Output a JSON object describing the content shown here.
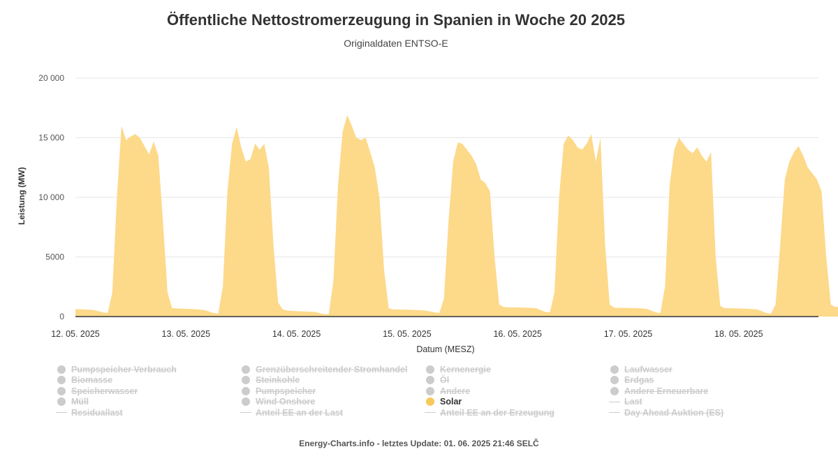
{
  "title": "Öffentliche Nettostromerzeugung in Spanien in Woche 20 2025",
  "subtitle": "Originaldaten ENTSO-E",
  "footer": "Energy-Charts.info - letztes Update: 01. 06. 2025 21:46 SELČ",
  "colors": {
    "solar": "#fdd98a",
    "hidden": "#cccccc",
    "grid": "#e6e6e6",
    "axis": "#333333"
  },
  "chart_data": {
    "type": "area",
    "title": "Öffentliche Nettostromerzeugung in Spanien in Woche 20 2025",
    "subtitle": "Originaldaten ENTSO-E",
    "xlabel": "Datum (MESZ)",
    "ylabel": "Leistung (MW)",
    "ylim": [
      0,
      20000
    ],
    "xlim": [
      "2025-05-12 00:00",
      "2025-05-18 23:00"
    ],
    "yticks": [
      0,
      5000,
      10000,
      15000,
      20000
    ],
    "ytick_labels": [
      "0",
      "5000",
      "10 000",
      "15 000",
      "20 000"
    ],
    "xtick_labels": [
      "12. 05. 2025",
      "13. 05. 2025",
      "14. 05. 2025",
      "15. 05. 2025",
      "16. 05. 2025",
      "17. 05. 2025",
      "18. 05. 2025"
    ],
    "grid": true,
    "legend_position": "bottom",
    "series": [
      {
        "name": "Solar",
        "color": "#fdd98a",
        "points": [
          [
            "2025-05-12 00:00",
            620
          ],
          [
            "2025-05-12 02:00",
            600
          ],
          [
            "2025-05-12 04:00",
            550
          ],
          [
            "2025-05-12 06:00",
            350
          ],
          [
            "2025-05-12 07:00",
            300
          ],
          [
            "2025-05-12 08:00",
            2000
          ],
          [
            "2025-05-12 09:00",
            10000
          ],
          [
            "2025-05-12 10:00",
            16000
          ],
          [
            "2025-05-12 11:00",
            14800
          ],
          [
            "2025-05-12 12:00",
            15100
          ],
          [
            "2025-05-12 13:00",
            15300
          ],
          [
            "2025-05-12 14:00",
            15000
          ],
          [
            "2025-05-12 15:00",
            14300
          ],
          [
            "2025-05-12 16:00",
            13600
          ],
          [
            "2025-05-12 17:00",
            14700
          ],
          [
            "2025-05-12 18:00",
            13500
          ],
          [
            "2025-05-12 19:00",
            8000
          ],
          [
            "2025-05-12 20:00",
            2000
          ],
          [
            "2025-05-12 21:00",
            700
          ],
          [
            "2025-05-12 22:00",
            680
          ],
          [
            "2025-05-13 00:00",
            650
          ],
          [
            "2025-05-13 02:00",
            620
          ],
          [
            "2025-05-13 04:00",
            550
          ],
          [
            "2025-05-13 06:00",
            300
          ],
          [
            "2025-05-13 07:00",
            250
          ],
          [
            "2025-05-13 08:00",
            2500
          ],
          [
            "2025-05-13 09:00",
            10500
          ],
          [
            "2025-05-13 10:00",
            14500
          ],
          [
            "2025-05-13 11:00",
            15900
          ],
          [
            "2025-05-13 12:00",
            14200
          ],
          [
            "2025-05-13 13:00",
            13000
          ],
          [
            "2025-05-13 14:00",
            13200
          ],
          [
            "2025-05-13 15:00",
            14500
          ],
          [
            "2025-05-13 16:00",
            14000
          ],
          [
            "2025-05-13 17:00",
            14500
          ],
          [
            "2025-05-13 18:00",
            12500
          ],
          [
            "2025-05-13 19:00",
            6000
          ],
          [
            "2025-05-13 20:00",
            1200
          ],
          [
            "2025-05-13 21:00",
            600
          ],
          [
            "2025-05-13 22:00",
            500
          ],
          [
            "2025-05-14 00:00",
            450
          ],
          [
            "2025-05-14 02:00",
            420
          ],
          [
            "2025-05-14 04:00",
            400
          ],
          [
            "2025-05-14 06:00",
            200
          ],
          [
            "2025-05-14 07:00",
            200
          ],
          [
            "2025-05-14 08:00",
            3000
          ],
          [
            "2025-05-14 09:00",
            11000
          ],
          [
            "2025-05-14 10:00",
            15500
          ],
          [
            "2025-05-14 11:00",
            16900
          ],
          [
            "2025-05-14 12:00",
            16000
          ],
          [
            "2025-05-14 13:00",
            15000
          ],
          [
            "2025-05-14 14:00",
            14800
          ],
          [
            "2025-05-14 15:00",
            15000
          ],
          [
            "2025-05-14 16:00",
            13800
          ],
          [
            "2025-05-14 17:00",
            12500
          ],
          [
            "2025-05-14 18:00",
            10000
          ],
          [
            "2025-05-14 19:00",
            4000
          ],
          [
            "2025-05-14 20:00",
            700
          ],
          [
            "2025-05-14 21:00",
            600
          ],
          [
            "2025-05-14 22:00",
            600
          ],
          [
            "2025-05-15 00:00",
            580
          ],
          [
            "2025-05-15 02:00",
            550
          ],
          [
            "2025-05-15 04:00",
            500
          ],
          [
            "2025-05-15 06:00",
            350
          ],
          [
            "2025-05-15 07:00",
            300
          ],
          [
            "2025-05-15 08:00",
            1500
          ],
          [
            "2025-05-15 09:00",
            8000
          ],
          [
            "2025-05-15 10:00",
            13000
          ],
          [
            "2025-05-15 11:00",
            14600
          ],
          [
            "2025-05-15 12:00",
            14500
          ],
          [
            "2025-05-15 13:00",
            14000
          ],
          [
            "2025-05-15 14:00",
            13500
          ],
          [
            "2025-05-15 15:00",
            12800
          ],
          [
            "2025-05-15 16:00",
            11500
          ],
          [
            "2025-05-15 17:00",
            11200
          ],
          [
            "2025-05-15 18:00",
            10500
          ],
          [
            "2025-05-15 19:00",
            5000
          ],
          [
            "2025-05-15 20:00",
            1000
          ],
          [
            "2025-05-15 21:00",
            800
          ],
          [
            "2025-05-15 22:00",
            780
          ],
          [
            "2025-05-16 00:00",
            760
          ],
          [
            "2025-05-16 02:00",
            750
          ],
          [
            "2025-05-16 04:00",
            700
          ],
          [
            "2025-05-16 06:00",
            400
          ],
          [
            "2025-05-16 07:00",
            350
          ],
          [
            "2025-05-16 08:00",
            2000
          ],
          [
            "2025-05-16 09:00",
            10000
          ],
          [
            "2025-05-16 10:00",
            14500
          ],
          [
            "2025-05-16 11:00",
            15200
          ],
          [
            "2025-05-16 12:00",
            14800
          ],
          [
            "2025-05-16 13:00",
            14200
          ],
          [
            "2025-05-16 14:00",
            14000
          ],
          [
            "2025-05-16 15:00",
            14500
          ],
          [
            "2025-05-16 16:00",
            15300
          ],
          [
            "2025-05-16 17:00",
            13000
          ],
          [
            "2025-05-16 18:00",
            15000
          ],
          [
            "2025-05-16 19:00",
            6000
          ],
          [
            "2025-05-16 20:00",
            1000
          ],
          [
            "2025-05-16 21:00",
            750
          ],
          [
            "2025-05-16 22:00",
            730
          ],
          [
            "2025-05-17 00:00",
            720
          ],
          [
            "2025-05-17 02:00",
            700
          ],
          [
            "2025-05-17 04:00",
            650
          ],
          [
            "2025-05-17 06:00",
            350
          ],
          [
            "2025-05-17 07:00",
            300
          ],
          [
            "2025-05-17 08:00",
            2500
          ],
          [
            "2025-05-17 09:00",
            11000
          ],
          [
            "2025-05-17 10:00",
            14000
          ],
          [
            "2025-05-17 11:00",
            15000
          ],
          [
            "2025-05-17 12:00",
            14500
          ],
          [
            "2025-05-17 13:00",
            14000
          ],
          [
            "2025-05-17 14:00",
            13700
          ],
          [
            "2025-05-17 15:00",
            14200
          ],
          [
            "2025-05-17 16:00",
            13500
          ],
          [
            "2025-05-17 17:00",
            13000
          ],
          [
            "2025-05-17 18:00",
            13800
          ],
          [
            "2025-05-17 19:00",
            5000
          ],
          [
            "2025-05-17 20:00",
            900
          ],
          [
            "2025-05-17 21:00",
            700
          ],
          [
            "2025-05-17 22:00",
            700
          ],
          [
            "2025-05-18 00:00",
            680
          ],
          [
            "2025-05-18 02:00",
            650
          ],
          [
            "2025-05-18 04:00",
            600
          ],
          [
            "2025-05-18 06:00",
            300
          ],
          [
            "2025-05-18 07:00",
            250
          ],
          [
            "2025-05-18 08:00",
            1000
          ],
          [
            "2025-05-18 09:00",
            6000
          ],
          [
            "2025-05-18 10:00",
            11500
          ],
          [
            "2025-05-18 11:00",
            13000
          ],
          [
            "2025-05-18 12:00",
            13800
          ],
          [
            "2025-05-18 13:00",
            14300
          ],
          [
            "2025-05-18 14:00",
            13500
          ],
          [
            "2025-05-18 15:00",
            12500
          ],
          [
            "2025-05-18 16:00",
            12000
          ],
          [
            "2025-05-18 17:00",
            11500
          ],
          [
            "2025-05-18 18:00",
            10500
          ],
          [
            "2025-05-18 19:00",
            5000
          ],
          [
            "2025-05-18 20:00",
            1000
          ],
          [
            "2025-05-18 21:00",
            800
          ],
          [
            "2025-05-18 23:00",
            800
          ]
        ]
      }
    ]
  },
  "legend": [
    {
      "label": "Pumpspeicher Verbrauch",
      "symbol": "dot",
      "visible": false
    },
    {
      "label": "Grenzüberschreitender Stromhandel",
      "symbol": "dot",
      "visible": false
    },
    {
      "label": "Kernenergie",
      "symbol": "dot",
      "visible": false
    },
    {
      "label": "Laufwasser",
      "symbol": "dot",
      "visible": false
    },
    {
      "label": "Biomasse",
      "symbol": "dot",
      "visible": false
    },
    {
      "label": "Steinkohle",
      "symbol": "dot",
      "visible": false
    },
    {
      "label": "Öl",
      "symbol": "dot",
      "visible": false
    },
    {
      "label": "Erdgas",
      "symbol": "dot",
      "visible": false
    },
    {
      "label": "Speicherwasser",
      "symbol": "dot",
      "visible": false
    },
    {
      "label": "Pumpspeicher",
      "symbol": "dot",
      "visible": false
    },
    {
      "label": "Andere",
      "symbol": "dot",
      "visible": false
    },
    {
      "label": "Andere Erneuerbare",
      "symbol": "dot",
      "visible": false
    },
    {
      "label": "Müll",
      "symbol": "dot",
      "visible": false
    },
    {
      "label": "Wind Onshore",
      "symbol": "dot",
      "visible": false
    },
    {
      "label": "Solar",
      "symbol": "dot",
      "visible": true,
      "color": "#f7c85a"
    },
    {
      "label": "Last",
      "symbol": "line",
      "visible": false
    },
    {
      "label": "Residuallast",
      "symbol": "line",
      "visible": false
    },
    {
      "label": "Anteil EE an der Last",
      "symbol": "line",
      "visible": false
    },
    {
      "label": "Anteil EE an der Erzeugung",
      "symbol": "line",
      "visible": false
    },
    {
      "label": "Day Ahead Auktion (ES)",
      "symbol": "line",
      "visible": false
    }
  ]
}
